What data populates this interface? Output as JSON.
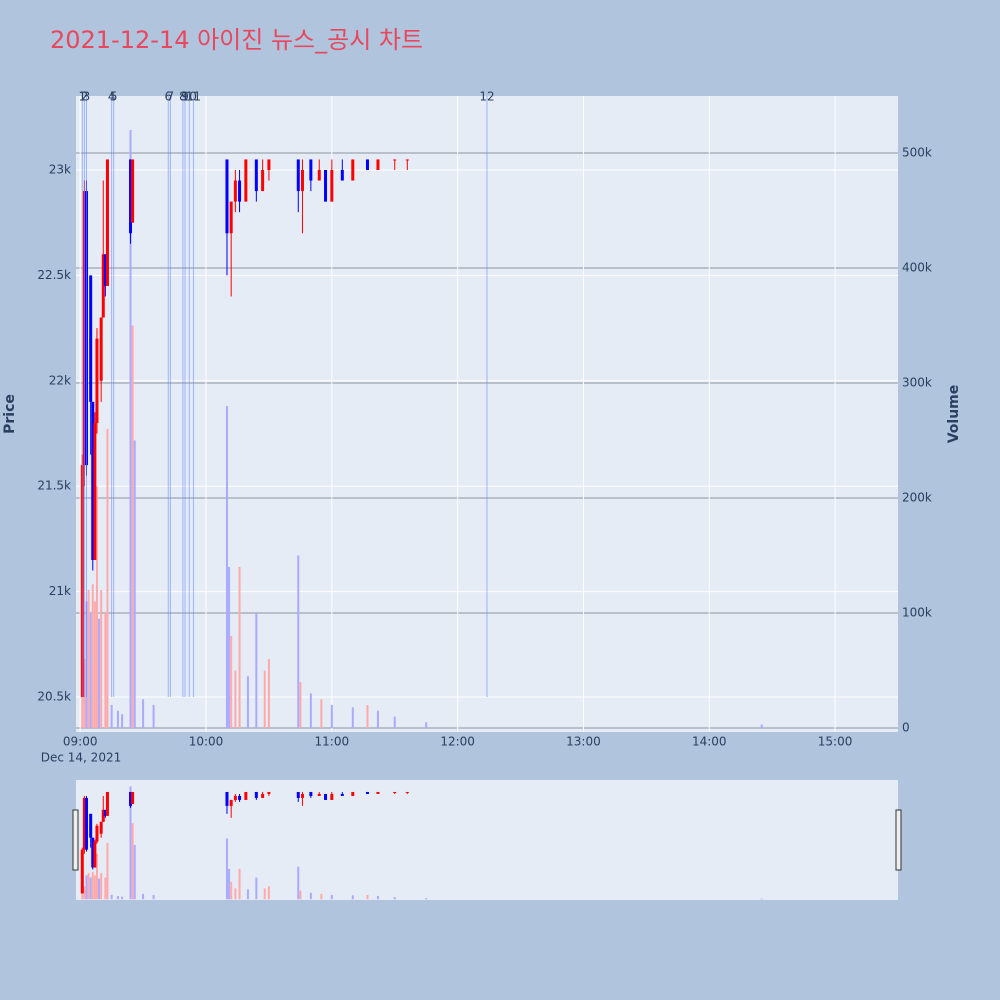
{
  "chart_data": {
    "type": "candlestick",
    "title": "2021-12-14 아이진 뉴스_공시 차트",
    "y_title": "Price",
    "y2_title": "Volume",
    "x_date_label": "Dec 14, 2021",
    "increasing_color": "#ff0000",
    "decreasing_color": "#0000ff",
    "xlim": [
      "2021-12-14 08:58",
      "2021-12-14 15:30"
    ],
    "xticks": [
      {
        "value": "2021-12-14 09:00",
        "label": "09:00"
      },
      {
        "value": "2021-12-14 10:00",
        "label": "10:00"
      },
      {
        "value": "2021-12-14 11:00",
        "label": "11:00"
      },
      {
        "value": "2021-12-14 12:00",
        "label": "12:00"
      },
      {
        "value": "2021-12-14 13:00",
        "label": "13:00"
      },
      {
        "value": "2021-12-14 14:00",
        "label": "14:00"
      },
      {
        "value": "2021-12-14 15:00",
        "label": "15:00"
      }
    ],
    "ylim": [
      20334,
      23351
    ],
    "yticks": [
      {
        "value": 20500,
        "label": "20.5k"
      },
      {
        "value": 21000,
        "label": "21k"
      },
      {
        "value": 21500,
        "label": "21.5k"
      },
      {
        "value": 22000,
        "label": "22k"
      },
      {
        "value": 22500,
        "label": "22.5k"
      },
      {
        "value": 23000,
        "label": "23k"
      }
    ],
    "y2lim": [
      -3500,
      549600
    ],
    "y2ticks": [
      0,
      {
        "value": 100000,
        "label": "100k"
      },
      {
        "value": 200000,
        "label": "200k"
      },
      {
        "value": 300000,
        "label": "300k"
      },
      {
        "value": 400000,
        "label": "400k"
      },
      {
        "value": 500000,
        "label": "500k"
      }
    ],
    "candles": {
      "x": [
        "2021-12-14 09:01",
        "2021-12-14 09:02",
        "2021-12-14 09:03",
        "2021-12-14 09:05",
        "2021-12-14 09:06",
        "2021-12-14 09:07",
        "2021-12-14 09:08",
        "2021-12-14 09:10",
        "2021-12-14 09:11",
        "2021-12-14 09:12",
        "2021-12-14 09:13",
        "2021-12-14 09:24",
        "2021-12-14 09:25",
        "2021-12-14 10:10",
        "2021-12-14 10:12",
        "2021-12-14 10:14",
        "2021-12-14 10:16",
        "2021-12-14 10:19",
        "2021-12-14 10:24",
        "2021-12-14 10:27",
        "2021-12-14 10:30",
        "2021-12-14 10:44",
        "2021-12-14 10:46",
        "2021-12-14 10:50",
        "2021-12-14 10:54",
        "2021-12-14 10:57",
        "2021-12-14 11:00",
        "2021-12-14 11:05",
        "2021-12-14 11:10",
        "2021-12-14 11:17",
        "2021-12-14 11:22",
        "2021-12-14 11:30",
        "2021-12-14 11:36"
      ],
      "open": [
        20500,
        21600,
        22900,
        22500,
        21900,
        21150,
        21800,
        22000,
        22300,
        22600,
        22450,
        23050,
        22750,
        23050,
        22700,
        22850,
        22950,
        22850,
        23050,
        22900,
        23000,
        23050,
        22900,
        23050,
        22950,
        23000,
        22850,
        23000,
        22950,
        23050,
        23000,
        23050,
        23050
      ],
      "high": [
        21650,
        22950,
        22950,
        22500,
        21900,
        21850,
        22250,
        22300,
        22950,
        22600,
        23050,
        23050,
        23050,
        23050,
        22850,
        23000,
        23000,
        23050,
        23050,
        23050,
        23050,
        23050,
        23050,
        23050,
        23050,
        23000,
        23050,
        23050,
        23050,
        23050,
        23050,
        23050,
        23050
      ],
      "low": [
        20500,
        21500,
        21550,
        21650,
        21100,
        21150,
        21750,
        21900,
        22300,
        22400,
        22450,
        22650,
        22750,
        22500,
        22400,
        22800,
        22800,
        22850,
        22850,
        22900,
        22950,
        22800,
        22700,
        22900,
        22950,
        22850,
        22850,
        22950,
        22950,
        23000,
        23000,
        23000,
        23000
      ],
      "close": [
        21600,
        22900,
        21600,
        21900,
        21150,
        21800,
        22200,
        22300,
        22600,
        22450,
        23050,
        22700,
        23050,
        22700,
        22850,
        22950,
        22850,
        23050,
        22900,
        23000,
        23050,
        22900,
        23000,
        22950,
        23000,
        22850,
        23000,
        22950,
        23050,
        23000,
        23050,
        23050,
        23050
      ]
    },
    "volume": {
      "x": [
        "2021-12-14 09:01",
        "2021-12-14 09:02",
        "2021-12-14 09:03",
        "2021-12-14 09:04",
        "2021-12-14 09:05",
        "2021-12-14 09:06",
        "2021-12-14 09:07",
        "2021-12-14 09:08",
        "2021-12-14 09:09",
        "2021-12-14 09:10",
        "2021-12-14 09:12",
        "2021-12-14 09:13",
        "2021-12-14 09:15",
        "2021-12-14 09:18",
        "2021-12-14 09:20",
        "2021-12-14 09:24",
        "2021-12-14 09:25",
        "2021-12-14 09:26",
        "2021-12-14 09:30",
        "2021-12-14 09:35",
        "2021-12-14 10:10",
        "2021-12-14 10:11",
        "2021-12-14 10:12",
        "2021-12-14 10:14",
        "2021-12-14 10:16",
        "2021-12-14 10:20",
        "2021-12-14 10:24",
        "2021-12-14 10:28",
        "2021-12-14 10:30",
        "2021-12-14 10:44",
        "2021-12-14 10:45",
        "2021-12-14 10:50",
        "2021-12-14 10:55",
        "2021-12-14 11:00",
        "2021-12-14 11:10",
        "2021-12-14 11:17",
        "2021-12-14 11:22",
        "2021-12-14 11:30",
        "2021-12-14 11:45",
        "2021-12-14 14:25"
      ],
      "values": [
        40000,
        60000,
        110000,
        120000,
        100000,
        125000,
        110000,
        210000,
        95000,
        120000,
        100000,
        260000,
        20000,
        15000,
        12000,
        520000,
        350000,
        250000,
        25000,
        20000,
        280000,
        140000,
        80000,
        50000,
        140000,
        45000,
        100000,
        50000,
        60000,
        150000,
        40000,
        30000,
        25000,
        20000,
        18000,
        20000,
        15000,
        10000,
        5000,
        3000
      ],
      "colors": [
        "#ffaaaa",
        "#ffaaaa",
        "#aaaaff",
        "#ffaaaa",
        "#aaaaff",
        "#ffaaaa",
        "#ffaaaa",
        "#ffaaaa",
        "#aaaaff",
        "#ffaaaa",
        "#ffaaaa",
        "#ffaaaa",
        "#aaaaff",
        "#aaaaff",
        "#aaaaff",
        "#aaaaff",
        "#ffaaaa",
        "#aaaaff",
        "#aaaaff",
        "#aaaaff",
        "#aaaaff",
        "#aaaaff",
        "#ffaaaa",
        "#ffaaaa",
        "#ffaaaa",
        "#aaaaff",
        "#aaaaff",
        "#ffaaaa",
        "#ffaaaa",
        "#aaaaff",
        "#ffaaaa",
        "#aaaaff",
        "#ffaaaa",
        "#aaaaff",
        "#aaaaff",
        "#ffaaaa",
        "#aaaaff",
        "#aaaaff",
        "#aaaaff",
        "#aaaaff"
      ]
    },
    "events": {
      "x": [
        "2021-12-14 09:01",
        "2021-12-14 09:02",
        "2021-12-14 09:03",
        "2021-12-14 09:15",
        "2021-12-14 09:16",
        "2021-12-14 09:42",
        "2021-12-14 09:43",
        "2021-12-14 09:49",
        "2021-12-14 09:50",
        "2021-12-14 09:52",
        "2021-12-14 09:54",
        "2021-12-14 12:14"
      ],
      "labels": [
        "1",
        "2",
        "3",
        "4",
        "5",
        "6",
        "7",
        "8",
        "9",
        "10",
        "11",
        "12"
      ]
    }
  }
}
